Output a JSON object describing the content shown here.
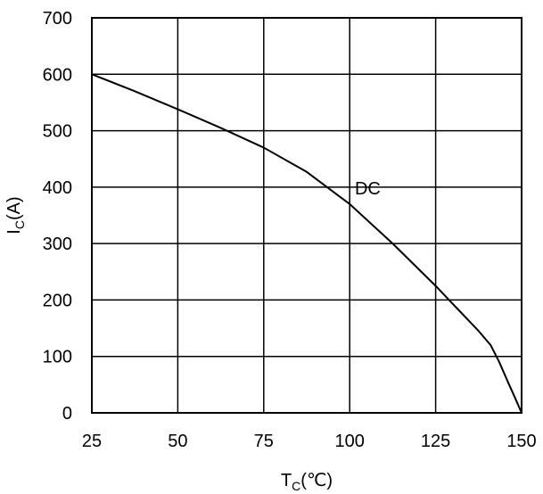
{
  "chart_data": {
    "type": "line",
    "xlabel": {
      "main": "T",
      "sub": "C",
      "unit": "(℃)"
    },
    "ylabel": {
      "main": "I",
      "sub": "C",
      "unit": "(A)"
    },
    "xlim": [
      25,
      150
    ],
    "ylim": [
      0,
      700
    ],
    "xticks": [
      25,
      50,
      75,
      100,
      125,
      150
    ],
    "yticks": [
      0,
      100,
      200,
      300,
      400,
      500,
      600,
      700
    ],
    "grid": true,
    "series": [
      {
        "name": "DC",
        "x": [
          25,
          37.5,
          50,
          62.5,
          75,
          87.5,
          100,
          112.5,
          125,
          137.5,
          141,
          143.5,
          146,
          148,
          150
        ],
        "y": [
          600,
          570,
          538,
          505,
          470,
          427,
          370,
          300,
          225,
          145,
          120,
          90,
          55,
          28,
          0
        ]
      }
    ],
    "annotations": [
      {
        "text": "DC",
        "x": 101.5,
        "y": 398
      }
    ]
  }
}
